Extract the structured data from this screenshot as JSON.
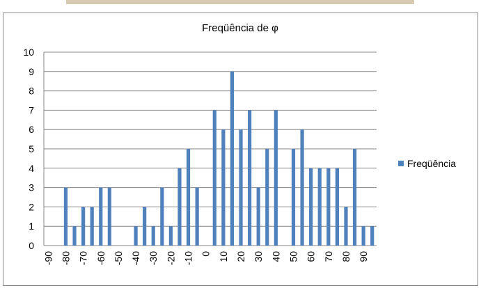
{
  "chart_data": {
    "type": "bar",
    "title": "Freqüência de φ",
    "categories": [
      "-90",
      null,
      "-80",
      null,
      "-70",
      null,
      "-60",
      null,
      "-50",
      null,
      "-40",
      null,
      "-30",
      null,
      "-20",
      null,
      "-10",
      null,
      "0",
      null,
      "10",
      null,
      "20",
      null,
      "30",
      null,
      "40",
      null,
      "50",
      null,
      "60",
      null,
      "70",
      null,
      "80",
      null,
      "90",
      null
    ],
    "series": [
      {
        "name": "Freqüência",
        "color": "#4f81bd",
        "values": [
          0,
          0,
          3,
          1,
          2,
          2,
          3,
          3,
          0,
          0,
          1,
          2,
          1,
          3,
          1,
          4,
          5,
          3,
          0,
          7,
          6,
          9,
          6,
          7,
          3,
          5,
          7,
          0,
          5,
          6,
          4,
          4,
          4,
          4,
          2,
          5,
          1,
          1
        ]
      }
    ],
    "ylim": [
      0,
      10
    ],
    "yticks": [
      0,
      1,
      2,
      3,
      4,
      5,
      6,
      7,
      8,
      9,
      10
    ],
    "grid": true,
    "legend": "right"
  }
}
